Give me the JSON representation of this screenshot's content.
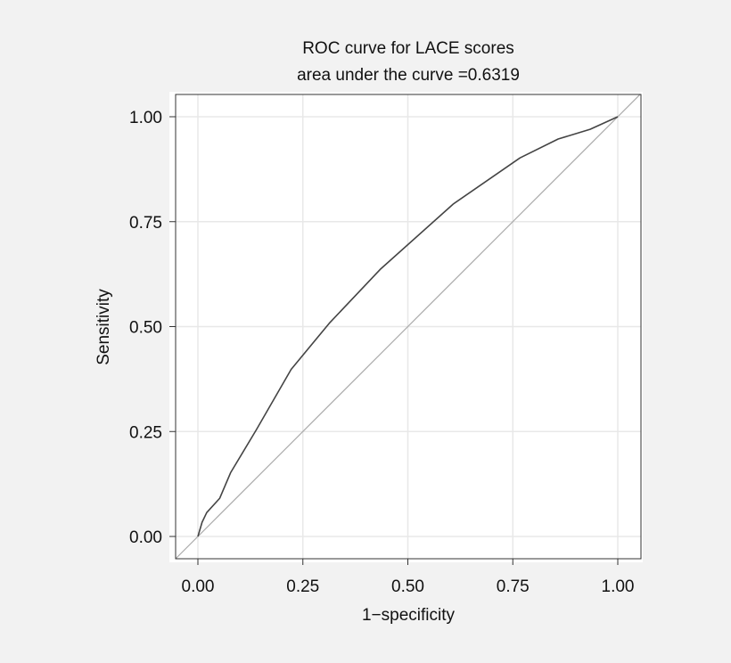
{
  "chart_data": {
    "type": "line",
    "title": "ROC curve for LACE scores",
    "subtitle": "area under the curve =0.6319",
    "xlabel": "1−specificity",
    "ylabel": "Sensitivity",
    "xlim": [
      -0.053,
      1.054
    ],
    "ylim": [
      -0.053,
      1.054
    ],
    "xticks": [
      0,
      0.25,
      0.5,
      0.75,
      1
    ],
    "yticks": [
      0,
      0.25,
      0.5,
      0.75,
      1
    ],
    "xtick_labels": [
      "0.00",
      "0.25",
      "0.50",
      "0.75",
      "1.00"
    ],
    "ytick_labels": [
      "0.00",
      "0.25",
      "0.50",
      "0.75",
      "1.00"
    ],
    "grid": true,
    "series": [
      {
        "name": "ROC curve",
        "color": "#444444",
        "x": [
          0,
          0.01,
          0.021,
          0.052,
          0.078,
          0.139,
          0.222,
          0.313,
          0.434,
          0.608,
          0.767,
          0.858,
          0.934,
          1
        ],
        "y": [
          0,
          0.034,
          0.057,
          0.091,
          0.152,
          0.254,
          0.398,
          0.508,
          0.636,
          0.792,
          0.902,
          0.947,
          0.97,
          1
        ]
      },
      {
        "name": "reference line",
        "color": "#aaaaaa",
        "x": [
          -0.053,
          1.054
        ],
        "y": [
          -0.053,
          1.054
        ]
      }
    ]
  }
}
